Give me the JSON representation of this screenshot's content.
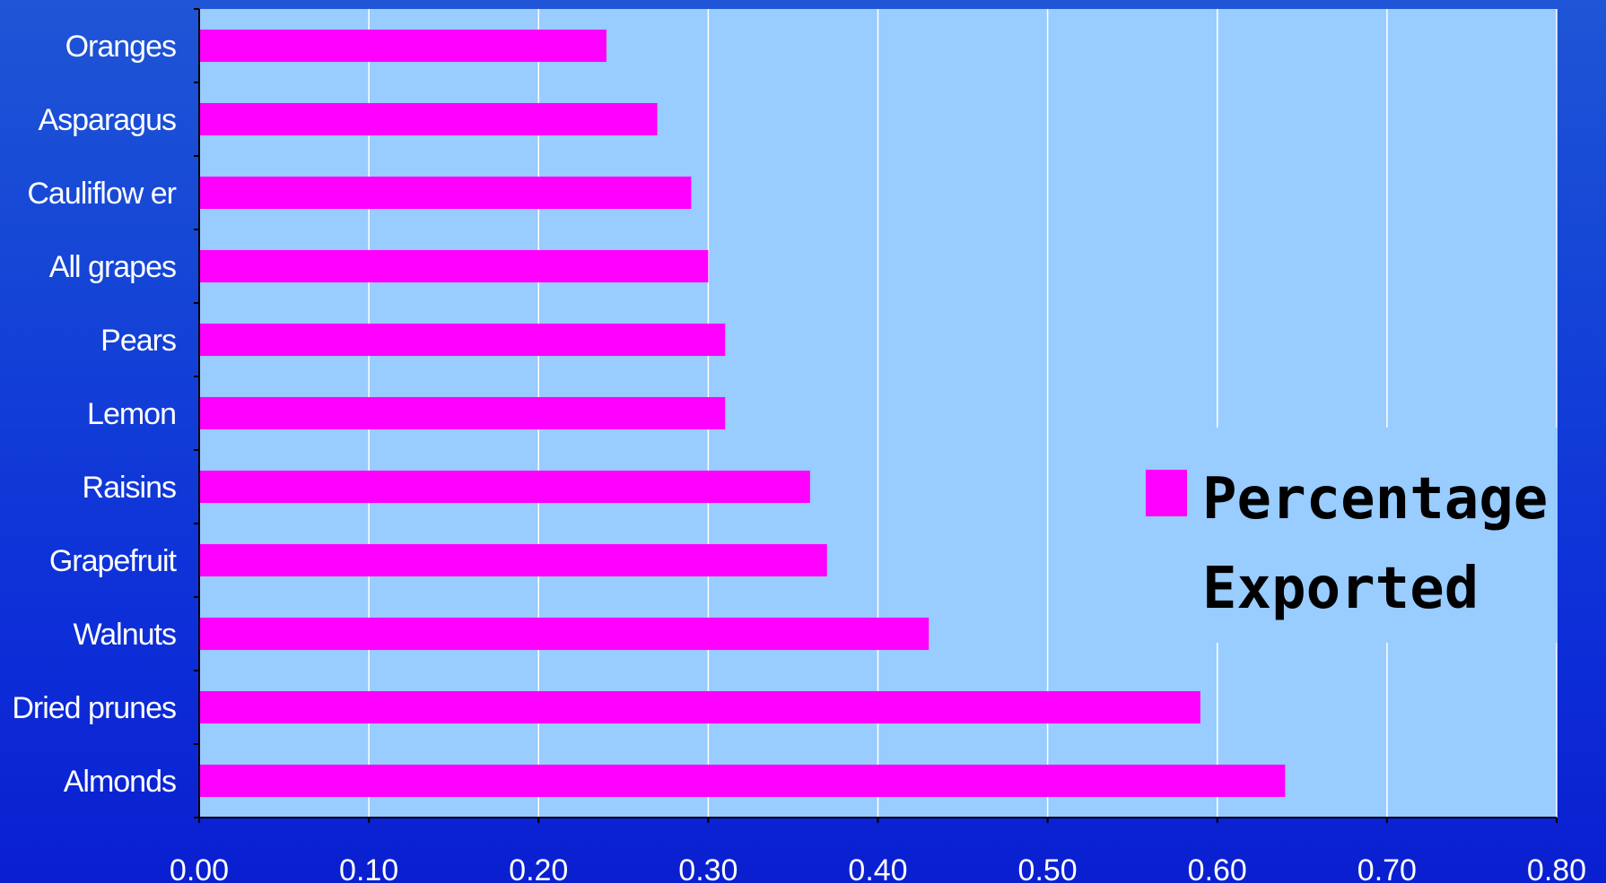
{
  "chart_data": {
    "type": "bar",
    "orientation": "horizontal",
    "categories": [
      "Almonds",
      "Dried prunes",
      "Walnuts",
      "Grapefruit",
      "Raisins",
      "Lemon",
      "Pears",
      "All grapes",
      "Cauliflow er",
      "Asparagus",
      "Oranges"
    ],
    "series": [
      {
        "name": "Percentage Exported",
        "values": [
          0.64,
          0.59,
          0.43,
          0.37,
          0.36,
          0.31,
          0.31,
          0.3,
          0.29,
          0.27,
          0.24
        ]
      }
    ],
    "xlim": [
      0,
      0.8
    ],
    "x_ticks": [
      "0.00",
      "0.10",
      "0.20",
      "0.30",
      "0.40",
      "0.50",
      "0.60",
      "0.70",
      "0.80"
    ],
    "grid": "vertical",
    "legend": {
      "lines": [
        "Percentage",
        "Exported"
      ],
      "placement": "right"
    },
    "colors": {
      "bar": "#ff00ff",
      "plot_background": "#99ccff",
      "gridline": "#ffffff",
      "axis": "#000000",
      "text": "#ffffff"
    }
  }
}
